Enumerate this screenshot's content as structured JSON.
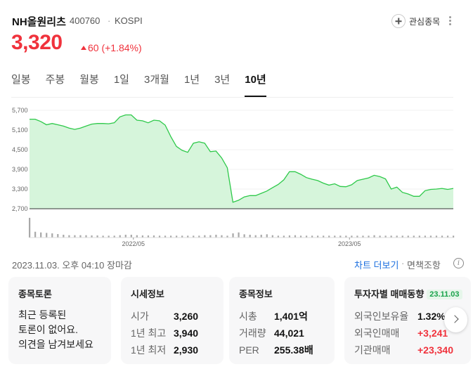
{
  "stock": {
    "name": "NH올원리츠",
    "code": "400760",
    "separator": "·",
    "market": "KOSPI",
    "price": "3,320",
    "change": "60 (+1.84%)",
    "fav_label": "관심종목"
  },
  "tabs": [
    {
      "label": "일봉",
      "active": false
    },
    {
      "label": "주봉",
      "active": false
    },
    {
      "label": "월봉",
      "active": false
    },
    {
      "label": "1일",
      "active": false
    },
    {
      "label": "3개월",
      "active": false
    },
    {
      "label": "1년",
      "active": false
    },
    {
      "label": "3년",
      "active": false
    },
    {
      "label": "10년",
      "active": true
    }
  ],
  "chart_data": {
    "type": "area",
    "ylim": [
      2700,
      5700
    ],
    "yticks": [
      "5,700",
      "5,100",
      "4,500",
      "3,900",
      "3,300",
      "2,700"
    ],
    "ytick_values": [
      5700,
      5100,
      4500,
      3900,
      3300,
      2700
    ],
    "xticks": [
      {
        "label": "2022/05",
        "t": 0.245
      },
      {
        "label": "2023/05",
        "t": 0.755
      }
    ],
    "series": [
      {
        "values": [
          5430,
          5430,
          5360,
          5260,
          5300,
          5260,
          5220,
          5160,
          5120,
          5160,
          5220,
          5280,
          5300,
          5300,
          5290,
          5320,
          5500,
          5560,
          5560,
          5400,
          5380,
          5320,
          5400,
          5380,
          5250,
          4900,
          4600,
          4480,
          4420,
          4700,
          4740,
          4700,
          4440,
          4460,
          4250,
          3950,
          2900,
          2960,
          3060,
          3100,
          3100,
          3170,
          3240,
          3340,
          3440,
          3580,
          3830,
          3830,
          3750,
          3650,
          3600,
          3560,
          3480,
          3420,
          3460,
          3380,
          3370,
          3430,
          3560,
          3600,
          3640,
          3720,
          3680,
          3610,
          3300,
          3360,
          3200,
          3150,
          3080,
          3080,
          3250,
          3290,
          3300,
          3320,
          3290,
          3320
        ]
      }
    ],
    "volume": [
      0.85,
      0.25,
      0.22,
      0.2,
      0.18,
      0.15,
      0.12,
      0.1,
      0.1,
      0.1,
      0.1,
      0.09,
      0.09,
      0.08,
      0.08,
      0.08,
      0.1,
      0.12,
      0.12,
      0.1,
      0.09,
      0.09,
      0.09,
      0.08,
      0.08,
      0.08,
      0.08,
      0.08,
      0.08,
      0.08,
      0.08,
      0.1,
      0.1,
      0.12,
      0.1,
      0.08,
      0.18,
      0.22,
      0.14,
      0.12,
      0.1,
      0.12,
      0.14,
      0.1,
      0.08,
      0.08,
      0.09,
      0.1,
      0.08,
      0.08,
      0.08,
      0.08,
      0.08,
      0.08,
      0.08,
      0.08,
      0.08,
      0.08,
      0.08,
      0.08,
      0.08,
      0.1,
      0.08,
      0.08,
      0.08,
      0.08,
      0.08,
      0.08,
      0.08,
      0.08,
      0.08,
      0.08,
      0.08,
      0.08,
      0.08,
      0.08
    ]
  },
  "status": {
    "timestamp": "2023.11.03. 오후 04:10 장마감",
    "chart_more": "차트 더보기",
    "dot": "·",
    "disclaimer": "면책조항",
    "info_glyph": "i"
  },
  "cards": {
    "discussion": {
      "title": "종목토론",
      "lines": [
        "최근 등록된",
        "토론이 없어요.",
        "의견을 남겨보세요"
      ]
    },
    "market_info": {
      "title": "시세정보",
      "rows": [
        {
          "k": "시가",
          "v": "3,260"
        },
        {
          "k": "1년 최고",
          "v": "3,940"
        },
        {
          "k": "1년 최저",
          "v": "2,930"
        }
      ]
    },
    "stock_info": {
      "title": "종목정보",
      "rows": [
        {
          "k": "시총",
          "v": "1,401억"
        },
        {
          "k": "거래량",
          "v": "44,021"
        },
        {
          "k": "PER",
          "v": "255.38배"
        }
      ]
    },
    "investor": {
      "title": "투자자별 매매동향",
      "date": "23.11.03",
      "rows": [
        {
          "k": "외국인보유율",
          "v": "1.32%"
        },
        {
          "k": "외국인매매",
          "v": "+3,241"
        },
        {
          "k": "기관매매",
          "v": "+23,340"
        }
      ]
    }
  },
  "colors": {
    "up": "#f0323c",
    "line": "#2ec94a",
    "area": "#d6f5db",
    "link": "#1a6edf"
  }
}
